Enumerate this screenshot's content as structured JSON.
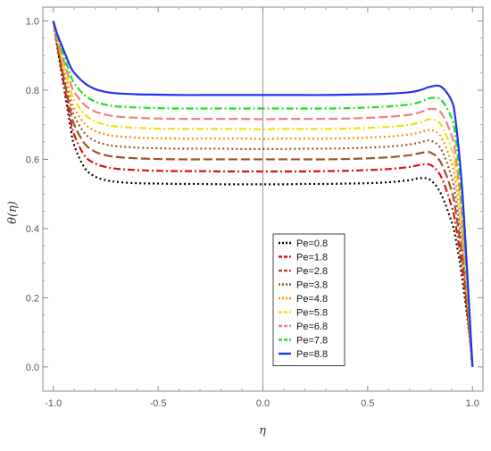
{
  "chart_data": {
    "type": "line",
    "title": "",
    "xlabel": "η",
    "ylabel": "θ(η)",
    "xlim": [
      -1.05,
      1.05
    ],
    "ylim": [
      -0.07,
      1.04
    ],
    "x_ticks": [
      -1.0,
      -0.5,
      0.0,
      0.5,
      1.0
    ],
    "x_tick_labels": [
      "-1.0",
      "-0.5",
      "0.0",
      "0.5",
      "1.0"
    ],
    "y_ticks": [
      0.0,
      0.2,
      0.4,
      0.6,
      0.8,
      1.0
    ],
    "y_tick_labels": [
      "0.0",
      "0.2",
      "0.4",
      "0.6",
      "0.8",
      "1.0"
    ],
    "grid": false,
    "legend_position": "bottom-right",
    "x": [
      -1.0,
      -0.98,
      -0.95,
      -0.92,
      -0.9,
      -0.85,
      -0.8,
      -0.75,
      -0.7,
      -0.6,
      -0.5,
      -0.4,
      -0.3,
      -0.2,
      -0.1,
      0.0,
      0.1,
      0.2,
      0.3,
      0.4,
      0.5,
      0.6,
      0.7,
      0.75,
      0.8,
      0.85,
      0.9,
      0.92,
      0.95,
      0.98,
      1.0
    ],
    "series": [
      {
        "name": "Pe=0.8",
        "color": "#000000",
        "dash": "2,3",
        "width": 2.2,
        "values": [
          1.0,
          0.92,
          0.81,
          0.7,
          0.64,
          0.575,
          0.55,
          0.54,
          0.535,
          0.531,
          0.53,
          0.529,
          0.529,
          0.528,
          0.528,
          0.528,
          0.528,
          0.529,
          0.529,
          0.53,
          0.531,
          0.534,
          0.54,
          0.546,
          0.54,
          0.5,
          0.42,
          0.37,
          0.26,
          0.12,
          0.0
        ]
      },
      {
        "name": "Pe=1.8",
        "color": "#e01010",
        "dash": "8,3,2,3",
        "width": 2.2,
        "values": [
          1.0,
          0.925,
          0.82,
          0.72,
          0.67,
          0.61,
          0.588,
          0.578,
          0.573,
          0.569,
          0.567,
          0.566,
          0.566,
          0.565,
          0.565,
          0.565,
          0.565,
          0.565,
          0.566,
          0.567,
          0.569,
          0.572,
          0.578,
          0.584,
          0.584,
          0.55,
          0.465,
          0.41,
          0.29,
          0.13,
          0.0
        ]
      },
      {
        "name": "Pe=2.8",
        "color": "#a0522d",
        "dash": "10,4",
        "width": 2.2,
        "values": [
          1.0,
          0.93,
          0.835,
          0.745,
          0.7,
          0.645,
          0.622,
          0.612,
          0.607,
          0.603,
          0.601,
          0.6,
          0.6,
          0.6,
          0.6,
          0.6,
          0.6,
          0.6,
          0.6,
          0.601,
          0.603,
          0.606,
          0.612,
          0.618,
          0.62,
          0.59,
          0.51,
          0.45,
          0.32,
          0.14,
          0.0
        ]
      },
      {
        "name": "Pe=3.8",
        "color": "#8b5a2b",
        "dash": "2,3",
        "width": 2.2,
        "values": [
          1.0,
          0.935,
          0.845,
          0.765,
          0.725,
          0.675,
          0.653,
          0.643,
          0.638,
          0.634,
          0.632,
          0.631,
          0.631,
          0.631,
          0.63,
          0.63,
          0.63,
          0.631,
          0.631,
          0.632,
          0.634,
          0.637,
          0.643,
          0.649,
          0.654,
          0.63,
          0.55,
          0.49,
          0.35,
          0.15,
          0.0
        ]
      },
      {
        "name": "Pe=4.8",
        "color": "#ff8c00",
        "dash": "2,3",
        "width": 2.2,
        "values": [
          1.0,
          0.94,
          0.86,
          0.785,
          0.748,
          0.703,
          0.682,
          0.672,
          0.667,
          0.663,
          0.661,
          0.66,
          0.66,
          0.66,
          0.66,
          0.659,
          0.66,
          0.66,
          0.66,
          0.661,
          0.663,
          0.666,
          0.672,
          0.678,
          0.685,
          0.665,
          0.59,
          0.53,
          0.38,
          0.16,
          0.0
        ]
      },
      {
        "name": "Pe=5.8",
        "color": "#f0e010",
        "dash": "8,3,2,3",
        "width": 2.2,
        "values": [
          1.0,
          0.945,
          0.87,
          0.805,
          0.772,
          0.73,
          0.71,
          0.7,
          0.695,
          0.691,
          0.689,
          0.688,
          0.688,
          0.688,
          0.688,
          0.687,
          0.688,
          0.688,
          0.688,
          0.689,
          0.691,
          0.694,
          0.7,
          0.707,
          0.716,
          0.7,
          0.63,
          0.57,
          0.41,
          0.18,
          0.0
        ]
      },
      {
        "name": "Pe=6.8",
        "color": "#f08080",
        "dash": "10,4",
        "width": 2.2,
        "values": [
          1.0,
          0.95,
          0.885,
          0.825,
          0.795,
          0.757,
          0.738,
          0.729,
          0.724,
          0.72,
          0.718,
          0.717,
          0.717,
          0.717,
          0.717,
          0.716,
          0.717,
          0.717,
          0.717,
          0.718,
          0.72,
          0.723,
          0.729,
          0.736,
          0.746,
          0.735,
          0.67,
          0.61,
          0.44,
          0.19,
          0.0
        ]
      },
      {
        "name": "Pe=7.8",
        "color": "#22dd22",
        "dash": "8,3,2,3",
        "width": 2.2,
        "values": [
          1.0,
          0.955,
          0.9,
          0.847,
          0.82,
          0.785,
          0.767,
          0.758,
          0.753,
          0.75,
          0.748,
          0.747,
          0.747,
          0.747,
          0.747,
          0.747,
          0.747,
          0.747,
          0.747,
          0.748,
          0.75,
          0.753,
          0.759,
          0.766,
          0.777,
          0.772,
          0.72,
          0.66,
          0.48,
          0.2,
          0.0
        ]
      },
      {
        "name": "Pe=8.8",
        "color": "#2233ee",
        "dash": "",
        "width": 2.2,
        "values": [
          1.0,
          0.96,
          0.915,
          0.87,
          0.85,
          0.82,
          0.803,
          0.795,
          0.791,
          0.788,
          0.787,
          0.786,
          0.786,
          0.786,
          0.786,
          0.786,
          0.786,
          0.786,
          0.786,
          0.787,
          0.788,
          0.79,
          0.794,
          0.8,
          0.81,
          0.81,
          0.77,
          0.71,
          0.52,
          0.22,
          0.0
        ]
      }
    ]
  }
}
